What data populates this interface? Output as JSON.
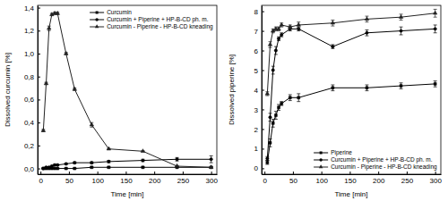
{
  "chart_data": [
    {
      "type": "line",
      "x_label": "Time [min]",
      "y_label": "Dissolved curcumin [%]",
      "x": [
        5,
        10,
        15,
        20,
        25,
        30,
        45,
        60,
        90,
        120,
        180,
        240,
        300
      ],
      "xlim": [
        -5,
        310
      ],
      "xticks": [
        0,
        50,
        100,
        150,
        200,
        250,
        300
      ],
      "ylim": [
        -0.05,
        1.42
      ],
      "yticks": [
        {
          "value": 0,
          "label": "0,0"
        },
        {
          "value": 0.2,
          "label": "0,2"
        },
        {
          "value": 0.4,
          "label": "0,4"
        },
        {
          "value": 0.6,
          "label": "0,6"
        },
        {
          "value": 0.8,
          "label": "0,8"
        },
        {
          "value": 1.0,
          "label": "1,0"
        },
        {
          "value": 1.2,
          "label": "1,2"
        },
        {
          "value": 1.4,
          "label": "1,4"
        }
      ],
      "legend": "top-right",
      "series": [
        {
          "name": "Curcumin",
          "color": "#000000",
          "marker": "square",
          "values": [
            0.0,
            0.0,
            0.0,
            0.0,
            0.0,
            0.0,
            0.0,
            0.0,
            0.01,
            0.01,
            0.01,
            0.01,
            0.01
          ],
          "errors": [
            0.003,
            0.003,
            0.003,
            0.003,
            0.003,
            0.003,
            0.003,
            0.003,
            0.005,
            0.005,
            0.005,
            0.005,
            0.005
          ]
        },
        {
          "name": "Curcumin + Piperine + HP-B-CD ph. m.",
          "color": "#000000",
          "marker": "circle",
          "values": [
            0.0,
            0.01,
            0.01,
            0.02,
            0.03,
            0.03,
            0.04,
            0.05,
            0.05,
            0.06,
            0.07,
            0.08,
            0.08
          ],
          "errors": [
            0.003,
            0.003,
            0.005,
            0.005,
            0.005,
            0.005,
            0.005,
            0.008,
            0.008,
            0.01,
            0.01,
            0.015,
            0.03
          ]
        },
        {
          "name": "Curcumin - Piperine - HP-B-CD kneading",
          "color": "#222222",
          "marker": "triangle",
          "values": [
            0.33,
            0.74,
            1.22,
            1.34,
            1.35,
            1.35,
            1.0,
            0.69,
            0.38,
            0.17,
            0.15,
            0.02,
            0.01
          ],
          "errors": [
            0.01,
            0.01,
            0.02,
            0.01,
            0.01,
            0.01,
            0.01,
            0.01,
            0.02,
            0.005,
            0.005,
            0.005,
            0.005
          ]
        }
      ]
    },
    {
      "type": "line",
      "x_label": "Time [min]",
      "y_label": "Dissolved piperine [%]",
      "x": [
        5,
        10,
        15,
        20,
        25,
        30,
        45,
        60,
        120,
        180,
        240,
        300
      ],
      "xlim": [
        -5,
        310
      ],
      "xticks": [
        0,
        50,
        100,
        150,
        200,
        250,
        300
      ],
      "ylim": [
        -0.3,
        8.3
      ],
      "yticks": [
        0,
        1,
        2,
        3,
        4,
        5,
        6,
        7,
        8
      ],
      "legend": "bottom-right",
      "series": [
        {
          "name": "Piperine",
          "color": "#000000",
          "marker": "square",
          "values": [
            0.3,
            1.3,
            2.3,
            2.7,
            3.1,
            3.3,
            3.6,
            3.6,
            4.1,
            4.1,
            4.2,
            4.3
          ],
          "errors": [
            0.1,
            0.2,
            0.2,
            0.2,
            0.15,
            0.1,
            0.15,
            0.2,
            0.15,
            0.15,
            0.15,
            0.15
          ]
        },
        {
          "name": "Curcumin + Piperine + HP-B-CD ph. m.",
          "color": "#000000",
          "marker": "circle",
          "values": [
            0.5,
            2.6,
            5.0,
            6.0,
            6.6,
            6.8,
            7.1,
            7.1,
            6.2,
            6.9,
            7.0,
            7.1
          ],
          "errors": [
            0.1,
            0.2,
            0.2,
            0.2,
            0.1,
            0.1,
            0.1,
            0.1,
            0.1,
            0.15,
            0.2,
            0.2
          ]
        },
        {
          "name": "Curcumin - Piperine - HP-B-CD kneading",
          "color": "#222222",
          "marker": "triangle",
          "values": [
            3.8,
            6.3,
            7.0,
            7.1,
            7.1,
            7.3,
            7.2,
            7.3,
            7.4,
            7.6,
            7.7,
            7.9
          ],
          "errors": [
            0.1,
            0.15,
            0.1,
            0.1,
            0.1,
            0.1,
            0.1,
            0.15,
            0.15,
            0.15,
            0.15,
            0.2
          ]
        }
      ]
    }
  ]
}
